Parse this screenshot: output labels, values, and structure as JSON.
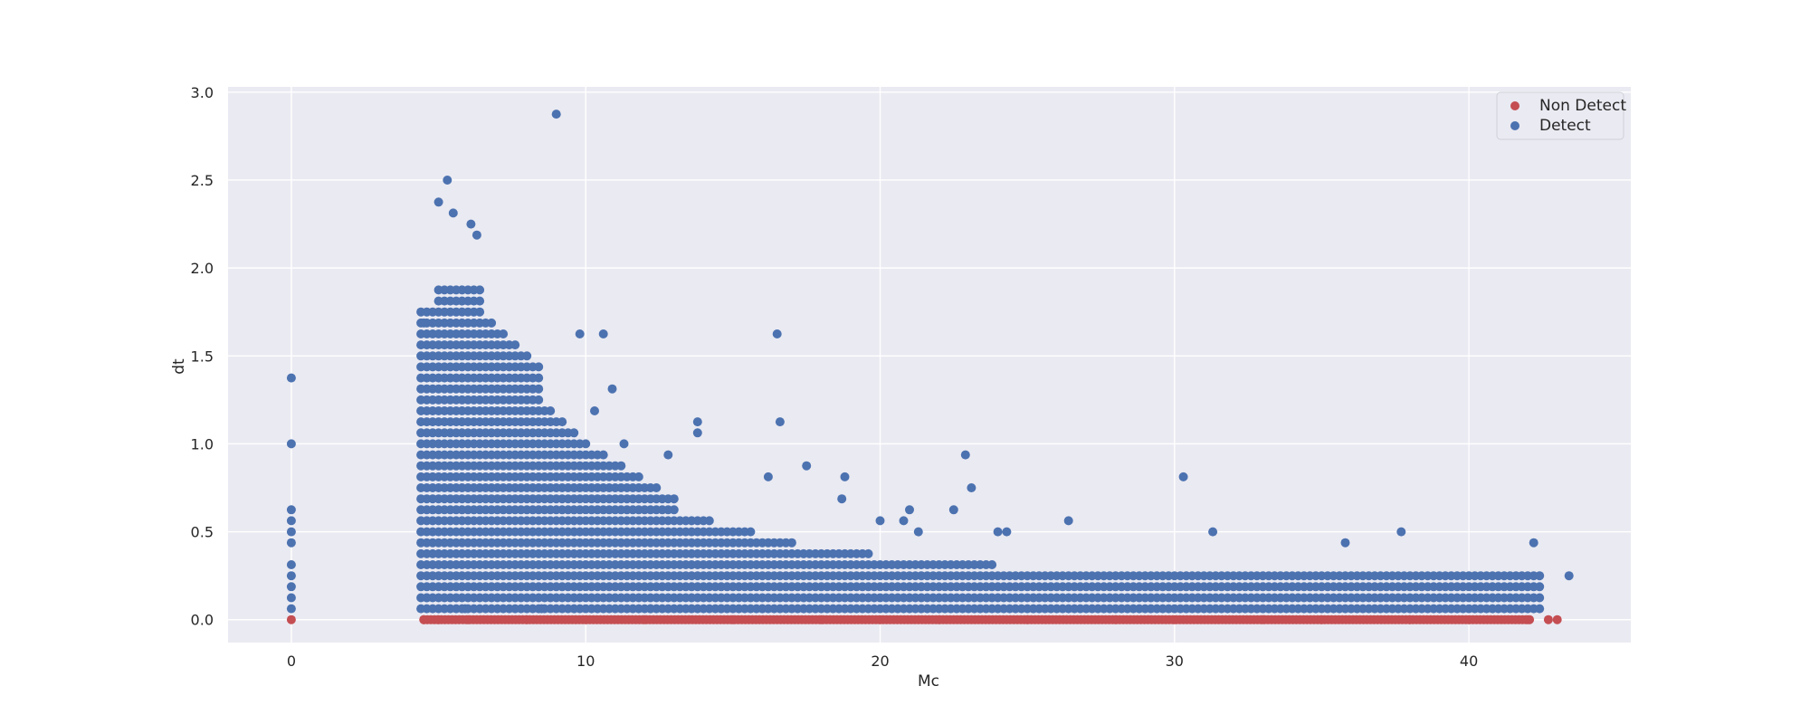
{
  "chart_data": {
    "type": "scatter",
    "title": "",
    "xlabel": "Mc",
    "ylabel": "dt",
    "xlim": [
      -2.15,
      45.5
    ],
    "ylim": [
      -0.13,
      3.03
    ],
    "x_ticks": [
      0,
      10,
      20,
      30,
      40
    ],
    "y_ticks": [
      0.0,
      0.5,
      1.0,
      1.5,
      2.0,
      2.5,
      3.0
    ],
    "x_tick_labels": [
      "0",
      "10",
      "20",
      "30",
      "40"
    ],
    "y_tick_labels": [
      "0.0",
      "0.5",
      "1.0",
      "1.5",
      "2.0",
      "2.5",
      "3.0"
    ],
    "grid": true,
    "legend_position": "top-right",
    "background": "#eaeaf2",
    "series": [
      {
        "name": "Non Detect",
        "color": "#c44e52",
        "description_of_points": "dense row at dt = 0",
        "points": [
          [
            0,
            0
          ],
          [
            4.5,
            0
          ],
          [
            5,
            0
          ],
          [
            6,
            0
          ],
          [
            8,
            0
          ],
          [
            10,
            0
          ],
          [
            12,
            0
          ],
          [
            15,
            0
          ],
          [
            18,
            0
          ],
          [
            20,
            0
          ],
          [
            22,
            0
          ],
          [
            25,
            0
          ],
          [
            28,
            0
          ],
          [
            30,
            0
          ],
          [
            33,
            0
          ],
          [
            35,
            0
          ],
          [
            38,
            0
          ],
          [
            40,
            0
          ],
          [
            42,
            0
          ],
          [
            42.7,
            0
          ],
          [
            43.0,
            0
          ]
        ]
      },
      {
        "name": "Detect",
        "color": "#4c72b0",
        "points": [
          [
            0,
            1.375
          ],
          [
            0,
            1.0
          ],
          [
            0,
            0.625
          ],
          [
            0,
            0.5625
          ],
          [
            0,
            0.5
          ],
          [
            0,
            0.4375
          ],
          [
            0,
            0.3125
          ],
          [
            0,
            0.25
          ],
          [
            0,
            0.1875
          ],
          [
            0,
            0.125
          ],
          [
            0,
            0.0625
          ],
          [
            9.0,
            2.875
          ],
          [
            5.3,
            2.5
          ],
          [
            5.0,
            2.375
          ],
          [
            5.5,
            2.3125
          ],
          [
            6.1,
            2.25
          ],
          [
            6.3,
            2.1875
          ],
          [
            4.5,
            1.6875
          ],
          [
            9.8,
            1.625
          ],
          [
            10.6,
            1.625
          ],
          [
            16.5,
            1.625
          ],
          [
            10.9,
            1.3125
          ],
          [
            16.6,
            1.125
          ],
          [
            13.8,
            1.125
          ],
          [
            13.8,
            1.0625
          ],
          [
            10.3,
            1.1875
          ],
          [
            11.3,
            1.0
          ],
          [
            12.8,
            0.9375
          ],
          [
            17.5,
            0.875
          ],
          [
            18.8,
            0.8125
          ],
          [
            16.2,
            0.8125
          ],
          [
            22.9,
            0.9375
          ],
          [
            23.1,
            0.75
          ],
          [
            30.3,
            0.8125
          ],
          [
            26.4,
            0.5625
          ],
          [
            31.3,
            0.5
          ],
          [
            37.7,
            0.5
          ],
          [
            35.8,
            0.4375
          ],
          [
            42.2,
            0.4375
          ],
          [
            43.4,
            0.25
          ],
          [
            24.0,
            0.5
          ],
          [
            24.3,
            0.5
          ],
          [
            22.5,
            0.625
          ],
          [
            21.0,
            0.625
          ],
          [
            21.3,
            0.5
          ],
          [
            20.0,
            0.5625
          ],
          [
            20.8,
            0.5625
          ],
          [
            18.7,
            0.6875
          ],
          [
            4.6,
            0.125
          ],
          [
            5.9,
            0.0625
          ],
          [
            8.5,
            0.0625
          ],
          [
            12.2,
            0.0625
          ],
          [
            14.6,
            0.0625
          ],
          [
            16.0,
            0.0625
          ]
        ]
      }
    ]
  },
  "legend": {
    "items": [
      {
        "label": "Non Detect",
        "color": "#c44e52"
      },
      {
        "label": "Detect",
        "color": "#4c72b0"
      }
    ]
  }
}
